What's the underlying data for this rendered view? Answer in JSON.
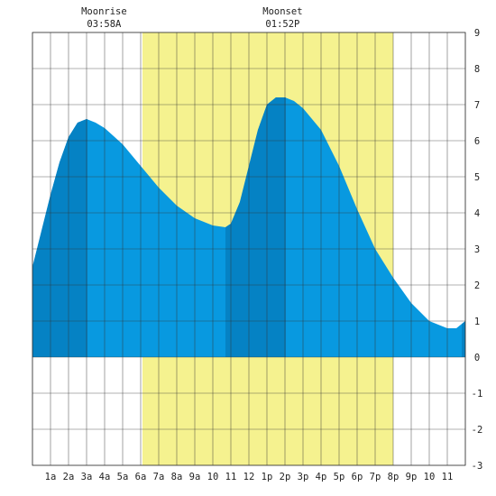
{
  "chart_data": {
    "type": "area",
    "x_unit": "hour of day",
    "x_tick_labels": [
      "1a",
      "2a",
      "3a",
      "4a",
      "5a",
      "6a",
      "7a",
      "8a",
      "9a",
      "10",
      "11",
      "12",
      "1p",
      "2p",
      "3p",
      "4p",
      "5p",
      "6p",
      "7p",
      "8p",
      "9p",
      "10",
      "11"
    ],
    "y_ticks": [
      -3,
      -2,
      -1,
      0,
      1,
      2,
      3,
      4,
      5,
      6,
      7,
      8,
      9
    ],
    "xlim": [
      0,
      24
    ],
    "ylim": [
      -3,
      9
    ],
    "grid": true,
    "daylight": {
      "start": 6.1,
      "end": 20.0,
      "color": "#f5f28f"
    },
    "moonrise": {
      "label": "Moonrise",
      "time": "03:58A",
      "hour": 3.97
    },
    "moonset": {
      "label": "Moonset",
      "time": "01:52P",
      "hour": 13.87
    },
    "tide_fill_color": "#0899e0",
    "tide_dark_color": "#0582c4",
    "dark_bands": [
      [
        0,
        3.05
      ],
      [
        10.7,
        14.05
      ],
      [
        24,
        24
      ]
    ],
    "tide_series": {
      "x": [
        0,
        0.5,
        1,
        1.5,
        2,
        2.5,
        3,
        3.5,
        4,
        5,
        6,
        7,
        8,
        9,
        10,
        10.7,
        11,
        11.5,
        12,
        12.5,
        13,
        13.5,
        14,
        14.5,
        15,
        15.5,
        16,
        17,
        18,
        19,
        20,
        21,
        22,
        22.5,
        23,
        23.5,
        24
      ],
      "y": [
        2.5,
        3.5,
        4.5,
        5.4,
        6.1,
        6.5,
        6.6,
        6.5,
        6.35,
        5.9,
        5.3,
        4.7,
        4.2,
        3.85,
        3.65,
        3.6,
        3.7,
        4.3,
        5.3,
        6.3,
        7.0,
        7.2,
        7.2,
        7.1,
        6.9,
        6.6,
        6.3,
        5.3,
        4.1,
        3.0,
        2.2,
        1.5,
        1.0,
        0.9,
        0.8,
        0.8,
        1.0
      ]
    }
  }
}
